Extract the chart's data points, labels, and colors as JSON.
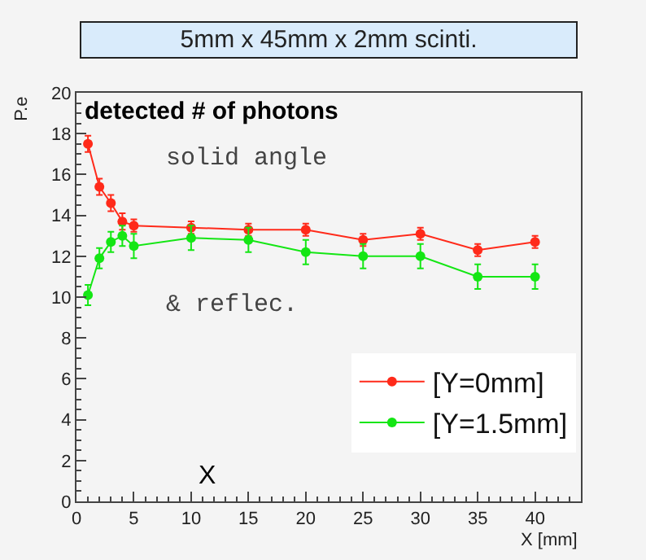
{
  "chart_data": {
    "type": "line",
    "title": "detected # of photons",
    "xlabel": "X [mm]",
    "ylabel": "P.e",
    "x": [
      1,
      2,
      3,
      4,
      5,
      10,
      15,
      20,
      25,
      30,
      35,
      40
    ],
    "series": [
      {
        "name": "[Y=0mm]",
        "color": "#ff2a1a",
        "values": [
          17.5,
          15.4,
          14.6,
          13.7,
          13.5,
          13.4,
          13.3,
          13.3,
          12.8,
          13.1,
          12.3,
          12.7
        ],
        "errors": [
          0.4,
          0.4,
          0.4,
          0.4,
          0.3,
          0.3,
          0.3,
          0.3,
          0.3,
          0.3,
          0.3,
          0.3
        ]
      },
      {
        "name": "[Y=1.5mm]",
        "color": "#14e614",
        "values": [
          10.1,
          11.9,
          12.7,
          13.0,
          12.5,
          12.9,
          12.8,
          12.2,
          12.0,
          12.0,
          11.0,
          11.0
        ],
        "errors": [
          0.5,
          0.5,
          0.5,
          0.5,
          0.6,
          0.6,
          0.6,
          0.6,
          0.6,
          0.6,
          0.6,
          0.6
        ]
      }
    ],
    "annotations": [
      "5mm x 45mm x 2mm scinti.",
      "solid angle",
      "& reflec.",
      "X"
    ],
    "xlim": [
      0,
      44
    ],
    "xticks": [
      0,
      5,
      10,
      15,
      20,
      25,
      30,
      35,
      40
    ],
    "ylim": [
      0,
      20
    ],
    "yticks": [
      0,
      2,
      4,
      6,
      8,
      10,
      12,
      14,
      16,
      18,
      20
    ],
    "grid": false,
    "legend": "bottom right",
    "marker": "circle",
    "line_style": "solid"
  }
}
